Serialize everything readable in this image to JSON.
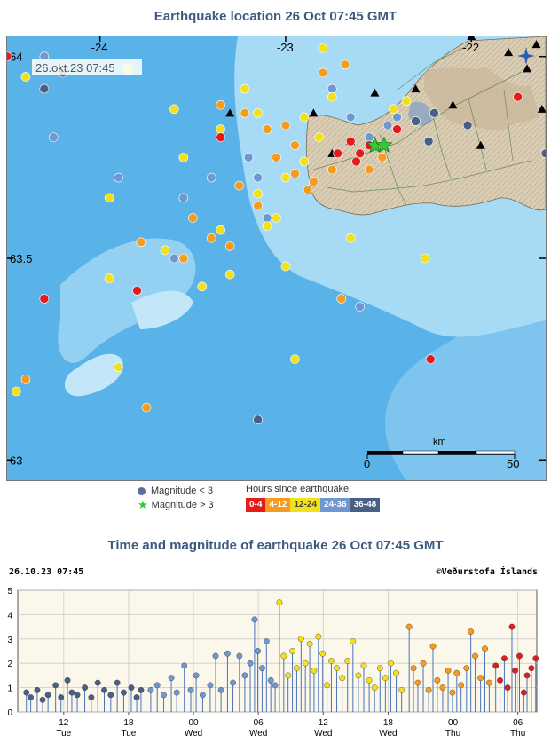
{
  "map": {
    "title": "Earthquake location   26 Oct 07:45 GMT",
    "timestamp": "26.okt.23  07:45",
    "lon_labels": [
      "-24",
      "-23",
      "-22"
    ],
    "lat_labels": [
      "64",
      "63.5",
      "63"
    ],
    "scale_unit": "km",
    "scale_min": "0",
    "scale_max": "50"
  },
  "legend": {
    "mag_small": "Magnitude < 3",
    "mag_large": "Magnitude > 3",
    "hours_title": "Hours since earthquake:",
    "hours": [
      {
        "label": "0-4",
        "color": "#e41a1c"
      },
      {
        "label": "4-12",
        "color": "#f39c1f"
      },
      {
        "label": "12-24",
        "color": "#f2e01a"
      },
      {
        "label": "24-36",
        "color": "#6f97d1"
      },
      {
        "label": "36-48",
        "color": "#4a5f85"
      }
    ]
  },
  "timeseries": {
    "title": "Time and magnitude of earthquake   26 Oct 07:45 GMT",
    "date_label": "26.10.23  07:45",
    "credit": "©Veðurstofa Íslands"
  },
  "chart_data": [
    {
      "type": "scatter",
      "title": "Earthquake location   26 Oct 07:45 GMT",
      "xlabel": "",
      "ylabel": "",
      "xlim": [
        -24.5,
        -21.6
      ],
      "ylim": [
        62.95,
        64.05
      ],
      "x_ticks": [
        -24,
        -23,
        -22
      ],
      "y_ticks": [
        64,
        63.5,
        63
      ],
      "grid": false,
      "legend": "bottom",
      "series": [
        {
          "name": "0-4",
          "color": "#e41a1c",
          "points": [
            [
              -24.5,
              64.0
            ],
            [
              -24.3,
              63.4
            ],
            [
              -23.8,
              63.42
            ],
            [
              -23.35,
              63.8
            ],
            [
              -22.65,
              63.79
            ],
            [
              -22.6,
              63.76
            ],
            [
              -22.55,
              63.78
            ],
            [
              -22.62,
              63.74
            ],
            [
              -22.4,
              63.82
            ],
            [
              -21.75,
              63.9
            ],
            [
              -22.72,
              63.76
            ],
            [
              -22.22,
              63.25
            ]
          ]
        },
        {
          "name": "4-12",
          "color": "#f39c1f",
          "points": [
            [
              -23.78,
              63.54
            ],
            [
              -23.05,
              63.75
            ],
            [
              -23.15,
              63.63
            ],
            [
              -23.3,
              63.53
            ],
            [
              -23.4,
              63.55
            ],
            [
              -23.55,
              63.5
            ],
            [
              -24.4,
              63.2
            ],
            [
              -23.35,
              63.88
            ],
            [
              -23.22,
              63.86
            ],
            [
              -22.95,
              63.71
            ],
            [
              -22.85,
              63.69
            ],
            [
              -22.75,
              63.72
            ],
            [
              -22.55,
              63.72
            ],
            [
              -22.48,
              63.75
            ],
            [
              -23.75,
              63.13
            ],
            [
              -22.95,
              63.78
            ],
            [
              -23.0,
              63.83
            ],
            [
              -22.7,
              63.4
            ],
            [
              -22.8,
              63.96
            ],
            [
              -22.68,
              63.98
            ],
            [
              -23.25,
              63.68
            ],
            [
              -23.5,
              63.6
            ],
            [
              -23.1,
              63.82
            ],
            [
              -22.88,
              63.67
            ]
          ]
        },
        {
          "name": "12-24",
          "color": "#f2e01a",
          "points": [
            [
              -24.4,
              63.95
            ],
            [
              -23.85,
              63.97
            ],
            [
              -23.6,
              63.87
            ],
            [
              -23.35,
              63.82
            ],
            [
              -23.15,
              63.86
            ],
            [
              -22.9,
              63.85
            ],
            [
              -22.75,
              63.9
            ],
            [
              -23.55,
              63.75
            ],
            [
              -23.0,
              63.7
            ],
            [
              -22.9,
              63.74
            ],
            [
              -23.15,
              63.66
            ],
            [
              -23.05,
              63.6
            ],
            [
              -23.35,
              63.57
            ],
            [
              -23.3,
              63.46
            ],
            [
              -23.45,
              63.43
            ],
            [
              -23.65,
              63.52
            ],
            [
              -23.95,
              63.45
            ],
            [
              -23.95,
              63.65
            ],
            [
              -24.45,
              63.17
            ],
            [
              -23.9,
              63.23
            ],
            [
              -23.0,
              63.48
            ],
            [
              -22.95,
              63.25
            ],
            [
              -22.65,
              63.55
            ],
            [
              -22.25,
              63.5
            ],
            [
              -22.42,
              63.87
            ],
            [
              -22.35,
              63.89
            ],
            [
              -22.8,
              64.02
            ],
            [
              -23.1,
              63.58
            ],
            [
              -22.82,
              63.8
            ],
            [
              -23.22,
              63.92
            ]
          ]
        },
        {
          "name": "24-36",
          "color": "#6f97d1",
          "points": [
            [
              -24.3,
              64.0
            ],
            [
              -24.25,
              63.8
            ],
            [
              -23.9,
              63.7
            ],
            [
              -23.6,
              63.5
            ],
            [
              -23.4,
              63.7
            ],
            [
              -23.2,
              63.75
            ],
            [
              -23.15,
              63.7
            ],
            [
              -22.55,
              63.8
            ],
            [
              -22.45,
              63.83
            ],
            [
              -22.75,
              63.92
            ],
            [
              -22.6,
              63.38
            ],
            [
              -23.1,
              63.6
            ],
            [
              -23.55,
              63.65
            ],
            [
              -22.65,
              63.85
            ],
            [
              -22.4,
              63.85
            ]
          ]
        },
        {
          "name": "36-48",
          "color": "#4a5f85",
          "points": [
            [
              -24.2,
              63.96
            ],
            [
              -24.3,
              63.92
            ],
            [
              -22.2,
              63.86
            ],
            [
              -22.3,
              63.84
            ],
            [
              -22.23,
              63.79
            ],
            [
              -22.02,
              63.83
            ],
            [
              -21.6,
              63.76
            ],
            [
              -23.15,
              63.1
            ]
          ]
        },
        {
          "name": "Magnitude > 3",
          "color": "#33cc33",
          "points": [
            [
              -22.52,
              63.78
            ],
            [
              -22.47,
              63.78
            ]
          ]
        }
      ],
      "annotations": [
        "0",
        "50",
        "km"
      ]
    },
    {
      "type": "scatter",
      "title": "Time and magnitude of earthquake   26 Oct 07:45 GMT",
      "xlabel": "",
      "ylabel": "",
      "x_ticks": [
        "12 Tue",
        "18 Tue",
        "00 Wed",
        "06 Wed",
        "12 Wed",
        "18 Wed",
        "00 Thu",
        "06 Thu"
      ],
      "x_unit": "hours from 24 Oct 07:45 GMT",
      "xlim": [
        0,
        48
      ],
      "ylim": [
        0,
        5
      ],
      "y_ticks": [
        0,
        1,
        2,
        3,
        4,
        5
      ],
      "grid": true,
      "series": [
        {
          "name": "36-48",
          "color": "#4a5f85",
          "points": [
            [
              0.8,
              0.8
            ],
            [
              1.2,
              0.6
            ],
            [
              1.8,
              0.9
            ],
            [
              2.3,
              0.5
            ],
            [
              2.8,
              0.7
            ],
            [
              3.5,
              1.1
            ],
            [
              4.0,
              0.6
            ],
            [
              4.6,
              1.3
            ],
            [
              5.0,
              0.8
            ],
            [
              5.5,
              0.7
            ],
            [
              6.2,
              1.0
            ],
            [
              6.8,
              0.6
            ],
            [
              7.4,
              1.2
            ],
            [
              8.0,
              0.9
            ],
            [
              8.6,
              0.7
            ],
            [
              9.2,
              1.2
            ],
            [
              9.8,
              0.8
            ],
            [
              10.5,
              1.0
            ],
            [
              11.0,
              0.6
            ],
            [
              11.4,
              0.9
            ]
          ]
        },
        {
          "name": "24-36",
          "color": "#6f97d1",
          "points": [
            [
              12.3,
              0.9
            ],
            [
              12.9,
              1.1
            ],
            [
              13.5,
              0.7
            ],
            [
              14.2,
              1.4
            ],
            [
              14.7,
              0.8
            ],
            [
              15.4,
              1.9
            ],
            [
              16.0,
              0.9
            ],
            [
              16.5,
              1.5
            ],
            [
              17.1,
              0.7
            ],
            [
              17.8,
              1.1
            ],
            [
              18.3,
              2.3
            ],
            [
              18.8,
              0.9
            ],
            [
              19.4,
              2.4
            ],
            [
              19.9,
              1.2
            ],
            [
              20.5,
              2.3
            ],
            [
              21.0,
              1.5
            ],
            [
              21.5,
              2.0
            ],
            [
              21.9,
              3.8
            ],
            [
              22.2,
              2.5
            ],
            [
              22.6,
              1.8
            ],
            [
              23.0,
              2.9
            ],
            [
              23.4,
              1.3
            ],
            [
              23.8,
              1.1
            ]
          ]
        },
        {
          "name": "12-24",
          "color": "#f2e01a",
          "points": [
            [
              24.2,
              4.5
            ],
            [
              24.6,
              2.3
            ],
            [
              25.0,
              1.5
            ],
            [
              25.4,
              2.5
            ],
            [
              25.8,
              1.8
            ],
            [
              26.2,
              3.0
            ],
            [
              26.6,
              2.0
            ],
            [
              27.0,
              2.8
            ],
            [
              27.4,
              1.7
            ],
            [
              27.8,
              3.1
            ],
            [
              28.2,
              2.4
            ],
            [
              28.6,
              1.1
            ],
            [
              29.0,
              2.1
            ],
            [
              29.5,
              1.8
            ],
            [
              30.0,
              1.4
            ],
            [
              30.5,
              2.1
            ],
            [
              31.0,
              2.9
            ],
            [
              31.5,
              1.5
            ],
            [
              32.0,
              1.9
            ],
            [
              32.5,
              1.3
            ],
            [
              33.0,
              1.0
            ],
            [
              33.5,
              1.8
            ],
            [
              34.0,
              1.4
            ],
            [
              34.5,
              2.0
            ],
            [
              35.0,
              1.6
            ],
            [
              35.5,
              0.9
            ]
          ]
        },
        {
          "name": "4-12",
          "color": "#f39c1f",
          "points": [
            [
              36.2,
              3.5
            ],
            [
              36.6,
              1.8
            ],
            [
              37.0,
              1.2
            ],
            [
              37.5,
              2.0
            ],
            [
              38.0,
              0.9
            ],
            [
              38.4,
              2.7
            ],
            [
              38.8,
              1.3
            ],
            [
              39.3,
              1.0
            ],
            [
              39.8,
              1.7
            ],
            [
              40.2,
              0.8
            ],
            [
              40.6,
              1.6
            ],
            [
              41.0,
              1.1
            ],
            [
              41.5,
              1.8
            ],
            [
              41.9,
              3.3
            ],
            [
              42.3,
              2.3
            ],
            [
              42.8,
              1.4
            ],
            [
              43.2,
              2.6
            ],
            [
              43.6,
              1.2
            ]
          ]
        },
        {
          "name": "0-4",
          "color": "#e41a1c",
          "points": [
            [
              44.2,
              1.9
            ],
            [
              44.6,
              1.3
            ],
            [
              45.0,
              2.2
            ],
            [
              45.3,
              1.0
            ],
            [
              45.7,
              3.5
            ],
            [
              46.0,
              1.7
            ],
            [
              46.4,
              2.3
            ],
            [
              46.8,
              0.8
            ],
            [
              47.1,
              1.5
            ],
            [
              47.5,
              1.8
            ],
            [
              47.9,
              2.2
            ]
          ]
        }
      ]
    }
  ]
}
